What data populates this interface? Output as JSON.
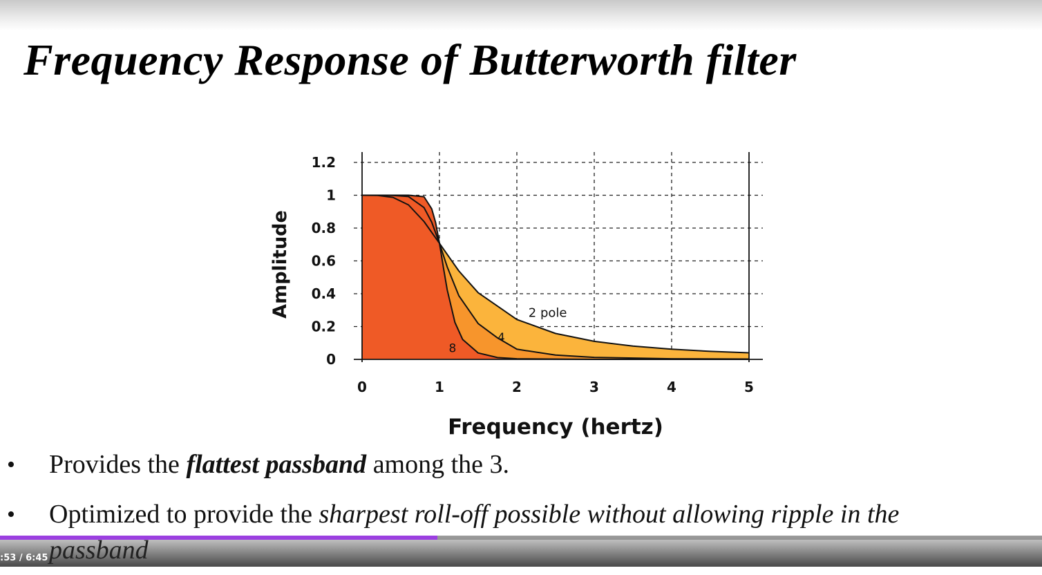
{
  "slide": {
    "title": "Frequency Response of Butterworth filter",
    "bullets": [
      {
        "pre": "Provides the ",
        "emph": "flattest passband",
        "post": " among the 3."
      },
      {
        "pre": "Optimized to provide the ",
        "emph": "sharpest roll-off possible without allowing ripple in the",
        "wrap": "passband"
      }
    ]
  },
  "player": {
    "timecode": ":53 / 6:45",
    "progress_fraction": 0.42
  },
  "colors": {
    "fill_8_pole": "#ef5a26",
    "fill_4_pole": "#f7952c",
    "fill_2_pole": "#fbb43c",
    "progress": "#9b3fe0"
  },
  "chart_data": {
    "type": "line",
    "title": "",
    "xlabel": "Frequency (hertz)",
    "ylabel": "Amplitude",
    "xlim": [
      0,
      5
    ],
    "ylim": [
      0,
      1.2
    ],
    "xticks": [
      "0",
      "1",
      "2",
      "3",
      "4",
      "5"
    ],
    "yticks": [
      "0",
      "0.2",
      "0.4",
      "0.6",
      "0.8",
      "1",
      "1.2"
    ],
    "grid": true,
    "series": [
      {
        "name": "2 pole",
        "x": [
          0,
          0.2,
          0.4,
          0.6,
          0.8,
          1.0,
          1.25,
          1.5,
          2.0,
          2.5,
          3.0,
          3.5,
          4.0,
          4.5,
          5.0
        ],
        "y": [
          1.0,
          0.999,
          0.987,
          0.941,
          0.84,
          0.707,
          0.539,
          0.406,
          0.243,
          0.158,
          0.11,
          0.081,
          0.062,
          0.049,
          0.04
        ]
      },
      {
        "name": "4",
        "x": [
          0,
          0.2,
          0.4,
          0.6,
          0.8,
          0.9,
          1.0,
          1.1,
          1.25,
          1.5,
          1.75,
          2.0,
          2.5,
          3.0,
          4.0,
          5.0
        ],
        "y": [
          1.0,
          1.0,
          0.999,
          0.992,
          0.925,
          0.836,
          0.707,
          0.564,
          0.388,
          0.218,
          0.131,
          0.062,
          0.026,
          0.012,
          0.004,
          0.002
        ],
        "label": "4"
      },
      {
        "name": "8",
        "x": [
          0,
          0.2,
          0.4,
          0.6,
          0.8,
          0.9,
          0.95,
          1.0,
          1.05,
          1.1,
          1.2,
          1.3,
          1.5,
          1.75,
          2.0,
          3.0,
          5.0
        ],
        "y": [
          1.0,
          1.0,
          1.0,
          1.0,
          0.991,
          0.917,
          0.834,
          0.707,
          0.562,
          0.424,
          0.225,
          0.121,
          0.039,
          0.011,
          0.004,
          0.0,
          0.0
        ],
        "label": "8"
      }
    ],
    "annotations": [
      "2 pole",
      "4",
      "8"
    ]
  }
}
